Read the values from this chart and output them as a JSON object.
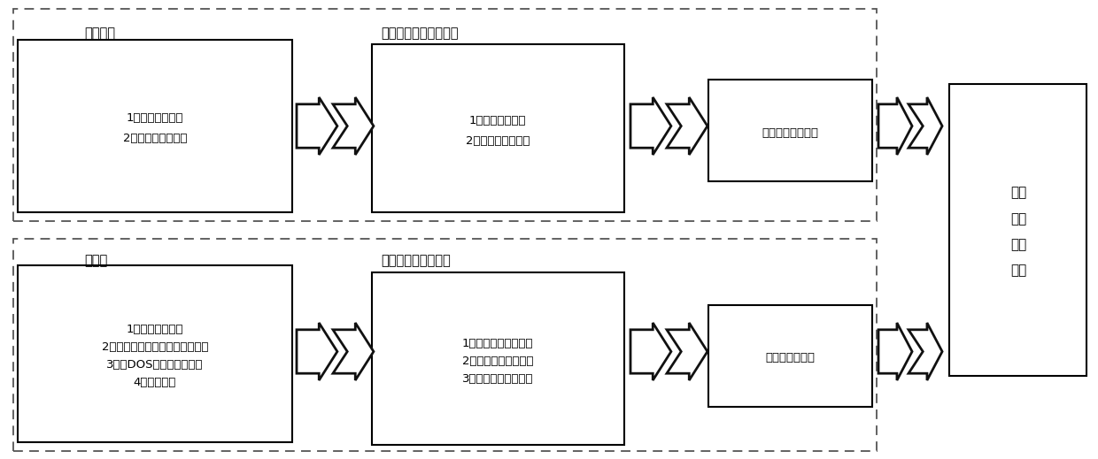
{
  "fig_width": 12.4,
  "fig_height": 5.19,
  "bg_color": "#ffffff",
  "text_color": "#000000",
  "top_outer_label": "联盟节点",
  "top_box1_text": "1、打包顺序错乱\n2、随意操纵时间戳",
  "top_mid_label": "联盟节点多维信誉管理",
  "top_box2_text": "1、打包信誉评估\n2、时间戳信誉评估",
  "top_box3_text": "异常联盟节点监测",
  "bot_outer_label": "客户端",
  "bot_box1_text": "1、调用参数错误\n2、受短地址攻击等交易数目错误\n3、受DOS攻击等恶意调用\n4、双花问题",
  "bot_mid_label": "客户端多维信誉管理",
  "bot_box2_text": "1、合约参数信誉评估\n2、合约加载信誉评估\n3、合约调用信誉评估",
  "bot_box3_text": "异常客户端监测",
  "right_label": "异常\n交易\n识别\n算法",
  "font_size_label": 10.5,
  "font_size_box": 9.5,
  "font_size_right": 11
}
